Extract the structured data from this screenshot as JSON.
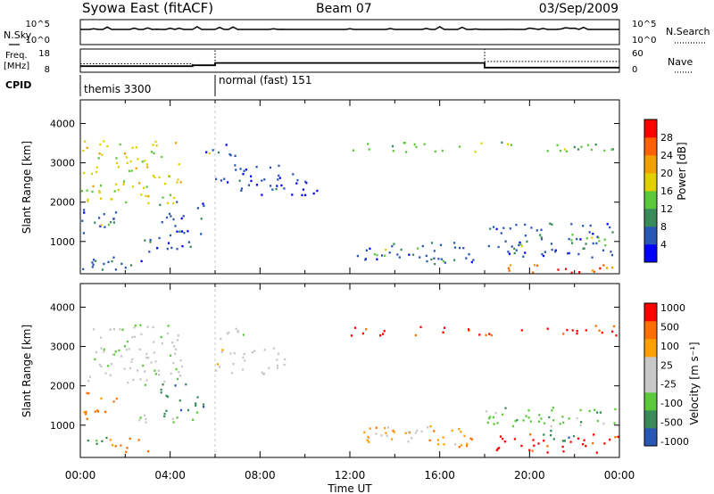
{
  "header": {
    "title": "Syowa East (fitACF)",
    "beam": "Beam 07",
    "date": "03/Sep/2009"
  },
  "colors": {
    "power": [
      "#0000ff",
      "#2a56b4",
      "#3a8a5a",
      "#5cc83c",
      "#e0d000",
      "#f0a000",
      "#ff6000",
      "#ff0000"
    ],
    "velocity": [
      "#ff0000",
      "#ff7000",
      "#ffa000",
      "#c8c8c8",
      "#c8c8c8",
      "#5cc83c",
      "#3a8a5a",
      "#2a56b4"
    ]
  },
  "chart_data": [
    {
      "type": "line",
      "name": "N.Sky / N.Search",
      "labels": {
        "left": "N.Sky",
        "right": "N.Search"
      },
      "left_ticks": [
        "10^5",
        "10^0"
      ],
      "right_ticks": [
        "10^5",
        "10^0"
      ],
      "x_range": [
        0,
        24
      ],
      "series": [
        {
          "name": "N.Sky",
          "style": "solid",
          "values_note": "near 10^5 throughout"
        },
        {
          "name": "N.Search",
          "style": "dotted"
        }
      ]
    },
    {
      "type": "line",
      "name": "Freq / Nave",
      "labels": {
        "left_line1": "Freq.",
        "left_line2": "[MHz]",
        "right": "Nave"
      },
      "left_ticks": [
        "18",
        "8"
      ],
      "right_ticks": [
        "60",
        "0"
      ],
      "ylim_left": [
        8,
        18
      ],
      "ylim_right": [
        0,
        60
      ],
      "x": [
        0,
        5,
        5,
        6,
        6,
        18,
        18,
        24
      ],
      "freq": [
        10.6,
        10.6,
        11.0,
        11.0,
        12.0,
        12.0,
        10.0,
        10.0
      ],
      "nave": [
        22,
        22,
        18,
        18,
        60,
        60,
        28,
        28
      ]
    },
    {
      "type": "table",
      "name": "CPID",
      "label": "CPID",
      "segments": [
        {
          "start": 0,
          "end": 6,
          "text": "themis 3300"
        },
        {
          "start": 6,
          "end": 24,
          "text": "normal (fast) 151"
        }
      ]
    },
    {
      "type": "heatmap",
      "name": "power",
      "ylabel": "Slant Range [km]",
      "colorbar_label": "Power [dB]",
      "colorbar_ticks": [
        "4",
        "8",
        "12",
        "16",
        "20",
        "24",
        "28"
      ],
      "ylim": [
        180,
        4600
      ],
      "yticks": [
        1000,
        2000,
        3000,
        4000
      ],
      "regions": [
        {
          "t": [
            0.0,
            1.6
          ],
          "r": [
            1100,
            1850
          ],
          "c": 1
        },
        {
          "t": [
            0.6,
            1.4
          ],
          "r": [
            1300,
            1600
          ],
          "c": 3
        },
        {
          "t": [
            0.0,
            3.0
          ],
          "r": [
            300,
            700
          ],
          "c": 1
        },
        {
          "t": [
            0.5,
            1.8
          ],
          "r": [
            450,
            650
          ],
          "c": 2
        },
        {
          "t": [
            2.5,
            5.0
          ],
          "r": [
            700,
            1200
          ],
          "c": 1
        },
        {
          "t": [
            3.5,
            5.5
          ],
          "r": [
            1200,
            2100
          ],
          "c": 1
        },
        {
          "t": [
            5.3,
            7.5
          ],
          "r": [
            3200,
            3500
          ],
          "c": 1
        },
        {
          "t": [
            5.6,
            5.9
          ],
          "r": [
            3250,
            3450
          ],
          "c": 5
        },
        {
          "t": [
            6.0,
            9.5
          ],
          "r": [
            2300,
            3000
          ],
          "c": 1
        },
        {
          "t": [
            8.0,
            10.8
          ],
          "r": [
            2200,
            2700
          ],
          "c": 0
        },
        {
          "t": [
            12.3,
            17.5
          ],
          "r": [
            500,
            1000
          ],
          "c": 1
        },
        {
          "t": [
            12.8,
            15.5
          ],
          "r": [
            650,
            900
          ],
          "c": 3
        },
        {
          "t": [
            15.5,
            17.5
          ],
          "r": [
            400,
            700
          ],
          "c": 2
        },
        {
          "t": [
            18.0,
            24.0
          ],
          "r": [
            600,
            1500
          ],
          "c": 1
        },
        {
          "t": [
            19.0,
            24.0
          ],
          "r": [
            200,
            450
          ],
          "c": 6
        },
        {
          "t": [
            20.5,
            22.5
          ],
          "r": [
            200,
            350
          ],
          "c": 7
        },
        {
          "t": [
            19.5,
            23.5
          ],
          "r": [
            900,
            1200
          ],
          "c": 3
        },
        {
          "t": [
            12.0,
            24.0
          ],
          "r": [
            3300,
            3550
          ],
          "c": 3
        },
        {
          "t": [
            0.0,
            4.5
          ],
          "r": [
            2000,
            3600
          ],
          "c": 4
        }
      ]
    },
    {
      "type": "heatmap",
      "name": "velocity",
      "ylabel": "Slant Range [km]",
      "colorbar_label": "Velocity [m s⁻¹]",
      "colorbar_ticks": [
        "-1000",
        "-500",
        "-100",
        "-25",
        "25",
        "100",
        "500",
        "1000"
      ],
      "ylim": [
        180,
        4600
      ],
      "yticks": [
        1000,
        2000,
        3000,
        4000
      ],
      "regions": [
        {
          "t": [
            0.0,
            1.6
          ],
          "r": [
            1100,
            1850
          ],
          "c": 6
        },
        {
          "t": [
            0.0,
            1.2
          ],
          "r": [
            500,
            900
          ],
          "c": 1
        },
        {
          "t": [
            1.0,
            3.0
          ],
          "r": [
            300,
            700
          ],
          "c": 6
        },
        {
          "t": [
            2.5,
            5.0
          ],
          "r": [
            1000,
            1300
          ],
          "c": 3
        },
        {
          "t": [
            3.5,
            5.5
          ],
          "r": [
            1200,
            2100
          ],
          "c": 1
        },
        {
          "t": [
            5.3,
            7.5
          ],
          "r": [
            3200,
            3500
          ],
          "c": 3
        },
        {
          "t": [
            6.0,
            9.5
          ],
          "r": [
            2300,
            3000
          ],
          "c": 4
        },
        {
          "t": [
            12.3,
            17.5
          ],
          "r": [
            500,
            1000
          ],
          "c": 5
        },
        {
          "t": [
            13.0,
            15.5
          ],
          "r": [
            650,
            900
          ],
          "c": 3
        },
        {
          "t": [
            15.5,
            17.5
          ],
          "r": [
            400,
            700
          ],
          "c": 6
        },
        {
          "t": [
            18.0,
            24.0
          ],
          "r": [
            1000,
            1500
          ],
          "c": 2
        },
        {
          "t": [
            19.0,
            23.5
          ],
          "r": [
            1000,
            1200
          ],
          "c": 3
        },
        {
          "t": [
            18.5,
            24.0
          ],
          "r": [
            300,
            800
          ],
          "c": 7
        },
        {
          "t": [
            20.0,
            22.5
          ],
          "r": [
            600,
            900
          ],
          "c": 1
        },
        {
          "t": [
            12.0,
            24.0
          ],
          "r": [
            3300,
            3550
          ],
          "c": 7
        },
        {
          "t": [
            0.0,
            4.5
          ],
          "r": [
            2000,
            3600
          ],
          "c": 3
        }
      ]
    }
  ],
  "xaxis": {
    "ticks": [
      "00:00",
      "04:00",
      "08:00",
      "12:00",
      "16:00",
      "20:00",
      "00:00"
    ],
    "label": "Time UT"
  }
}
